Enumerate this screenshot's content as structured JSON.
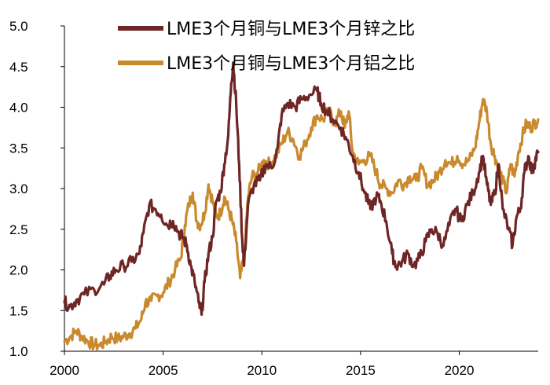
{
  "chart_data": {
    "type": "line",
    "title": "",
    "xlabel": "",
    "ylabel": "",
    "xlim": [
      2000,
      2024
    ],
    "ylim": [
      1.0,
      5.0
    ],
    "x_ticks": [
      "2000",
      "2005",
      "2010",
      "2015",
      "2020"
    ],
    "y_ticks": [
      "1.0",
      "1.5",
      "2.0",
      "2.5",
      "3.0",
      "3.5",
      "4.0",
      "4.5",
      "5.0"
    ],
    "grid": false,
    "legend_position": "top",
    "series": [
      {
        "name": "LME3个月铜与LME3个月锌之比",
        "color": "#6e2525",
        "points": [
          [
            2000.0,
            1.6
          ],
          [
            2000.3,
            1.55
          ],
          [
            2000.6,
            1.63
          ],
          [
            2001.0,
            1.7
          ],
          [
            2001.5,
            1.76
          ],
          [
            2002.0,
            1.82
          ],
          [
            2002.3,
            1.93
          ],
          [
            2002.6,
            2.0
          ],
          [
            2003.0,
            2.05
          ],
          [
            2003.4,
            2.1
          ],
          [
            2003.8,
            2.2
          ],
          [
            2004.0,
            2.45
          ],
          [
            2004.3,
            2.8
          ],
          [
            2004.6,
            2.75
          ],
          [
            2004.9,
            2.68
          ],
          [
            2005.2,
            2.55
          ],
          [
            2005.5,
            2.6
          ],
          [
            2005.8,
            2.45
          ],
          [
            2006.0,
            2.4
          ],
          [
            2006.2,
            2.3
          ],
          [
            2006.4,
            2.05
          ],
          [
            2006.6,
            1.85
          ],
          [
            2006.8,
            1.6
          ],
          [
            2006.95,
            1.45
          ],
          [
            2007.1,
            1.85
          ],
          [
            2007.3,
            2.2
          ],
          [
            2007.5,
            2.4
          ],
          [
            2007.7,
            2.85
          ],
          [
            2007.9,
            2.95
          ],
          [
            2008.1,
            3.3
          ],
          [
            2008.3,
            3.65
          ],
          [
            2008.45,
            4.3
          ],
          [
            2008.55,
            4.55
          ],
          [
            2008.7,
            4.05
          ],
          [
            2008.85,
            3.3
          ],
          [
            2009.0,
            2.4
          ],
          [
            2009.1,
            2.05
          ],
          [
            2009.3,
            2.8
          ],
          [
            2009.6,
            3.05
          ],
          [
            2009.9,
            3.1
          ],
          [
            2010.2,
            3.3
          ],
          [
            2010.5,
            3.25
          ],
          [
            2010.8,
            3.5
          ],
          [
            2011.0,
            3.9
          ],
          [
            2011.3,
            4.05
          ],
          [
            2011.7,
            4.0
          ],
          [
            2012.0,
            4.1
          ],
          [
            2012.4,
            4.15
          ],
          [
            2012.8,
            4.2
          ],
          [
            2013.0,
            4.05
          ],
          [
            2013.3,
            3.95
          ],
          [
            2013.6,
            3.85
          ],
          [
            2014.0,
            3.75
          ],
          [
            2014.3,
            3.6
          ],
          [
            2014.6,
            3.4
          ],
          [
            2014.9,
            3.2
          ],
          [
            2015.2,
            2.95
          ],
          [
            2015.5,
            2.75
          ],
          [
            2015.8,
            2.9
          ],
          [
            2016.0,
            2.85
          ],
          [
            2016.3,
            2.6
          ],
          [
            2016.6,
            2.2
          ],
          [
            2016.8,
            2.05
          ],
          [
            2017.1,
            2.1
          ],
          [
            2017.4,
            2.2
          ],
          [
            2017.7,
            2.05
          ],
          [
            2018.0,
            2.15
          ],
          [
            2018.3,
            2.35
          ],
          [
            2018.6,
            2.5
          ],
          [
            2018.9,
            2.45
          ],
          [
            2019.2,
            2.3
          ],
          [
            2019.5,
            2.55
          ],
          [
            2019.8,
            2.75
          ],
          [
            2020.1,
            2.6
          ],
          [
            2020.4,
            2.8
          ],
          [
            2020.7,
            2.95
          ],
          [
            2021.0,
            3.2
          ],
          [
            2021.2,
            3.4
          ],
          [
            2021.4,
            3.05
          ],
          [
            2021.6,
            2.8
          ],
          [
            2021.8,
            2.95
          ],
          [
            2022.0,
            3.3
          ],
          [
            2022.2,
            2.75
          ],
          [
            2022.5,
            2.5
          ],
          [
            2022.7,
            2.3
          ],
          [
            2022.9,
            2.65
          ],
          [
            2023.1,
            2.75
          ],
          [
            2023.3,
            3.2
          ],
          [
            2023.5,
            3.4
          ],
          [
            2023.7,
            3.2
          ],
          [
            2023.85,
            3.35
          ],
          [
            2024.0,
            3.45
          ]
        ]
      },
      {
        "name": "LME3个月铜与LME3个月铝之比",
        "color": "#c98a2e",
        "points": [
          [
            2000.0,
            1.12
          ],
          [
            2000.3,
            1.18
          ],
          [
            2000.6,
            1.25
          ],
          [
            2000.9,
            1.18
          ],
          [
            2001.2,
            1.12
          ],
          [
            2001.5,
            1.08
          ],
          [
            2001.8,
            1.07
          ],
          [
            2002.1,
            1.12
          ],
          [
            2002.4,
            1.18
          ],
          [
            2002.7,
            1.15
          ],
          [
            2003.0,
            1.18
          ],
          [
            2003.3,
            1.22
          ],
          [
            2003.6,
            1.28
          ],
          [
            2003.9,
            1.4
          ],
          [
            2004.1,
            1.6
          ],
          [
            2004.4,
            1.62
          ],
          [
            2004.7,
            1.68
          ],
          [
            2005.0,
            1.72
          ],
          [
            2005.3,
            1.85
          ],
          [
            2005.6,
            2.0
          ],
          [
            2005.9,
            2.15
          ],
          [
            2006.1,
            2.55
          ],
          [
            2006.3,
            2.8
          ],
          [
            2006.5,
            2.95
          ],
          [
            2006.7,
            2.6
          ],
          [
            2006.9,
            2.55
          ],
          [
            2007.1,
            2.7
          ],
          [
            2007.3,
            3.05
          ],
          [
            2007.5,
            2.85
          ],
          [
            2007.7,
            2.65
          ],
          [
            2007.9,
            2.7
          ],
          [
            2008.1,
            2.9
          ],
          [
            2008.3,
            2.75
          ],
          [
            2008.5,
            2.6
          ],
          [
            2008.7,
            2.35
          ],
          [
            2008.9,
            1.9
          ],
          [
            2009.1,
            2.15
          ],
          [
            2009.3,
            2.9
          ],
          [
            2009.5,
            3.15
          ],
          [
            2009.8,
            3.2
          ],
          [
            2010.1,
            3.35
          ],
          [
            2010.4,
            3.3
          ],
          [
            2010.7,
            3.4
          ],
          [
            2011.0,
            3.55
          ],
          [
            2011.3,
            3.7
          ],
          [
            2011.6,
            3.6
          ],
          [
            2011.9,
            3.4
          ],
          [
            2012.2,
            3.55
          ],
          [
            2012.5,
            3.75
          ],
          [
            2012.8,
            3.9
          ],
          [
            2013.1,
            3.85
          ],
          [
            2013.4,
            3.95
          ],
          [
            2013.7,
            3.8
          ],
          [
            2014.0,
            3.95
          ],
          [
            2014.2,
            3.75
          ],
          [
            2014.4,
            3.95
          ],
          [
            2014.6,
            3.45
          ],
          [
            2014.9,
            3.3
          ],
          [
            2015.2,
            3.35
          ],
          [
            2015.5,
            3.4
          ],
          [
            2015.8,
            3.2
          ],
          [
            2016.0,
            3.05
          ],
          [
            2016.3,
            3.0
          ],
          [
            2016.6,
            2.95
          ],
          [
            2016.9,
            3.1
          ],
          [
            2017.2,
            3.05
          ],
          [
            2017.5,
            3.15
          ],
          [
            2017.8,
            3.1
          ],
          [
            2018.1,
            3.25
          ],
          [
            2018.4,
            3.05
          ],
          [
            2018.7,
            3.1
          ],
          [
            2019.0,
            3.2
          ],
          [
            2019.3,
            3.35
          ],
          [
            2019.6,
            3.3
          ],
          [
            2019.9,
            3.4
          ],
          [
            2020.2,
            3.3
          ],
          [
            2020.5,
            3.35
          ],
          [
            2020.8,
            3.5
          ],
          [
            2021.0,
            3.8
          ],
          [
            2021.2,
            4.1
          ],
          [
            2021.4,
            3.95
          ],
          [
            2021.6,
            3.55
          ],
          [
            2021.8,
            3.4
          ],
          [
            2022.0,
            3.25
          ],
          [
            2022.2,
            3.1
          ],
          [
            2022.4,
            2.95
          ],
          [
            2022.6,
            3.3
          ],
          [
            2022.8,
            3.15
          ],
          [
            2023.0,
            3.45
          ],
          [
            2023.2,
            3.65
          ],
          [
            2023.4,
            3.8
          ],
          [
            2023.6,
            3.75
          ],
          [
            2023.8,
            3.8
          ],
          [
            2024.0,
            3.85
          ]
        ]
      }
    ]
  }
}
